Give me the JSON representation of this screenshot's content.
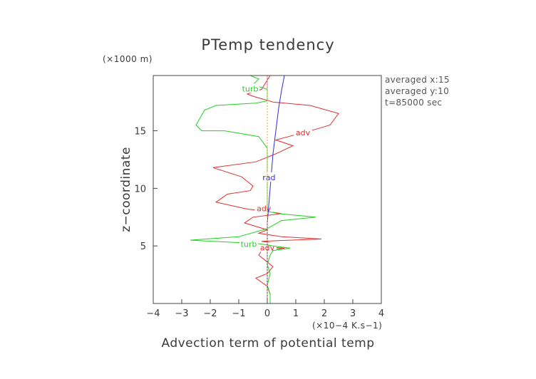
{
  "chart_data": {
    "type": "line",
    "title": "PTemp tendency",
    "xlabel": "Advection term of potential temp",
    "ylabel": "z−coordinate",
    "x_unit": "(×10−4 K.s−1)",
    "y_unit": "(×1000 m)",
    "xlim": [
      -4,
      4
    ],
    "ylim": [
      0,
      19.8
    ],
    "x_ticks": [
      -4,
      -3,
      -2,
      -1,
      0,
      1,
      2,
      3,
      4
    ],
    "x_tick_labels": [
      "−4",
      "−3",
      "−2",
      "−1",
      "0",
      "1",
      "2",
      "3",
      "4"
    ],
    "y_ticks": [
      5,
      10,
      15
    ],
    "y_tick_labels": [
      "5",
      "10",
      "15"
    ],
    "info_lines": [
      "averaged  x:15",
      "averaged  y:10",
      "t=85000 sec"
    ],
    "grid": false,
    "series": [
      {
        "name": "adv",
        "color": "#e03030",
        "points": [
          [
            0.1,
            0.0
          ],
          [
            0.1,
            0.8
          ],
          [
            0.0,
            1.5
          ],
          [
            -0.4,
            2.2
          ],
          [
            0.0,
            2.6
          ],
          [
            0.2,
            3.2
          ],
          [
            0.0,
            3.6
          ],
          [
            -0.3,
            4.2
          ],
          [
            -0.2,
            4.6
          ],
          [
            0.6,
            4.8
          ],
          [
            -0.4,
            5.0
          ],
          [
            0.3,
            5.2
          ],
          [
            -0.2,
            5.4
          ],
          [
            1.9,
            5.6
          ],
          [
            0.5,
            5.8
          ],
          [
            -0.3,
            6.1
          ],
          [
            0.0,
            6.4
          ],
          [
            -0.8,
            7.0
          ],
          [
            -0.5,
            7.5
          ],
          [
            0.5,
            7.8
          ],
          [
            0.0,
            8.0
          ],
          [
            -0.7,
            8.2
          ],
          [
            -1.8,
            8.8
          ],
          [
            -1.4,
            9.5
          ],
          [
            -0.6,
            9.8
          ],
          [
            -0.5,
            10.2
          ],
          [
            -0.9,
            11.0
          ],
          [
            -1.9,
            11.8
          ],
          [
            -0.4,
            12.3
          ],
          [
            0.3,
            13.0
          ],
          [
            0.9,
            13.7
          ],
          [
            0.3,
            14.2
          ],
          [
            1.2,
            14.8
          ],
          [
            1.8,
            15.2
          ],
          [
            2.2,
            15.5
          ],
          [
            2.5,
            16.5
          ],
          [
            1.5,
            17.2
          ],
          [
            0.2,
            17.5
          ],
          [
            -0.5,
            18.0
          ],
          [
            -0.7,
            18.2
          ],
          [
            -0.2,
            18.6
          ],
          [
            -0.1,
            19.0
          ],
          [
            0.1,
            19.8
          ]
        ],
        "labels": [
          {
            "text": "adv",
            "at": [
              1.25,
              14.8
            ]
          },
          {
            "text": "adv",
            "at": [
              -0.12,
              8.2
            ]
          },
          {
            "text": "adv",
            "at": [
              0.0,
              4.8
            ]
          }
        ]
      },
      {
        "name": "turb",
        "color": "#20d020",
        "points": [
          [
            0.1,
            0.0
          ],
          [
            0.1,
            0.8
          ],
          [
            0.0,
            1.6
          ],
          [
            0.1,
            2.6
          ],
          [
            0.0,
            3.4
          ],
          [
            0.1,
            4.2
          ],
          [
            0.2,
            4.6
          ],
          [
            0.8,
            4.8
          ],
          [
            0.2,
            5.0
          ],
          [
            -0.3,
            5.2
          ],
          [
            -2.7,
            5.5
          ],
          [
            -1.0,
            5.8
          ],
          [
            0.0,
            6.5
          ],
          [
            0.5,
            7.2
          ],
          [
            1.7,
            7.5
          ],
          [
            0.4,
            7.8
          ],
          [
            0.0,
            8.0
          ],
          [
            0.0,
            10.0
          ],
          [
            0.0,
            13.5
          ],
          [
            -0.3,
            14.5
          ],
          [
            -1.5,
            15.0
          ],
          [
            -2.3,
            15.0
          ],
          [
            -2.5,
            15.5
          ],
          [
            -2.2,
            16.8
          ],
          [
            -1.8,
            17.2
          ],
          [
            -0.4,
            17.4
          ],
          [
            0.0,
            17.6
          ],
          [
            0.0,
            18.6
          ],
          [
            -0.5,
            19.0
          ],
          [
            -0.3,
            19.5
          ],
          [
            -0.6,
            19.8
          ]
        ],
        "labels": [
          {
            "text": "turb",
            "at": [
              -0.6,
              18.6
            ]
          },
          {
            "text": "turb",
            "at": [
              -0.65,
              5.1
            ]
          }
        ]
      },
      {
        "name": "rad",
        "color": "#3030d0",
        "points": [
          [
            0.0,
            0.0
          ],
          [
            0.0,
            7.0
          ],
          [
            0.1,
            10.0
          ],
          [
            0.2,
            13.0
          ],
          [
            0.3,
            15.0
          ],
          [
            0.4,
            17.0
          ],
          [
            0.5,
            18.5
          ],
          [
            0.6,
            19.8
          ]
        ],
        "labels": [
          {
            "text": "rad",
            "at": [
              0.06,
              10.9
            ]
          }
        ]
      },
      {
        "name": "",
        "color": "#f0a020",
        "points": [
          [
            0.0,
            0.0
          ],
          [
            0.0,
            19.8
          ]
        ],
        "labels": []
      },
      {
        "name": "",
        "color": "#e030e0",
        "points": [
          [
            0.0,
            18.7
          ],
          [
            0.0,
            19.8
          ]
        ],
        "labels": []
      }
    ]
  }
}
